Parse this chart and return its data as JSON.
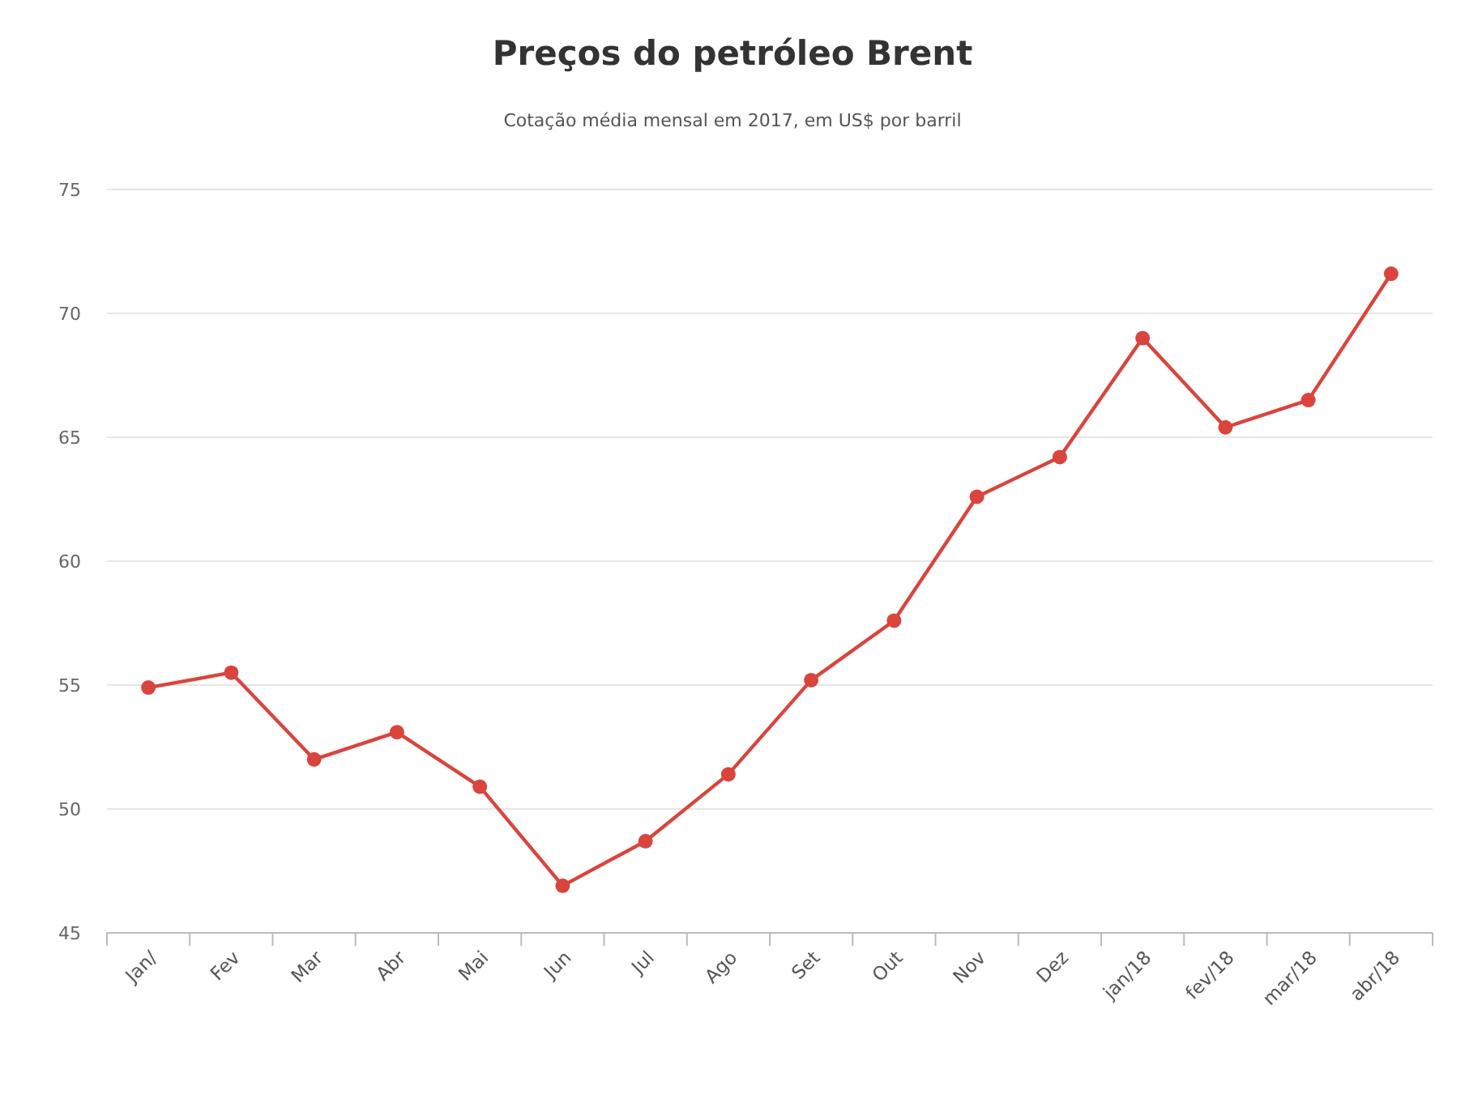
{
  "chart_data": {
    "type": "line",
    "title": "Preços do petróleo Brent",
    "subtitle": "Cotação média mensal em 2017, em US$ por barril",
    "categories": [
      "Jan/",
      "Fev",
      "Mar",
      "Abr",
      "Mai",
      "Jun",
      "Jul",
      "Ago",
      "Set",
      "Out",
      "Nov",
      "Dez",
      "jan/18",
      "fev/18",
      "mar/18",
      "abr/18"
    ],
    "series": [
      {
        "color": "#d9453d",
        "values": [
          54.9,
          55.5,
          52.0,
          53.1,
          50.9,
          46.9,
          48.7,
          51.4,
          55.2,
          57.6,
          62.6,
          64.2,
          69.0,
          65.4,
          66.5,
          71.6
        ]
      }
    ],
    "ylim": [
      45,
      75
    ],
    "yticks": [
      45,
      50,
      55,
      60,
      65,
      70,
      75
    ],
    "grid": "y",
    "marker": "circle"
  }
}
